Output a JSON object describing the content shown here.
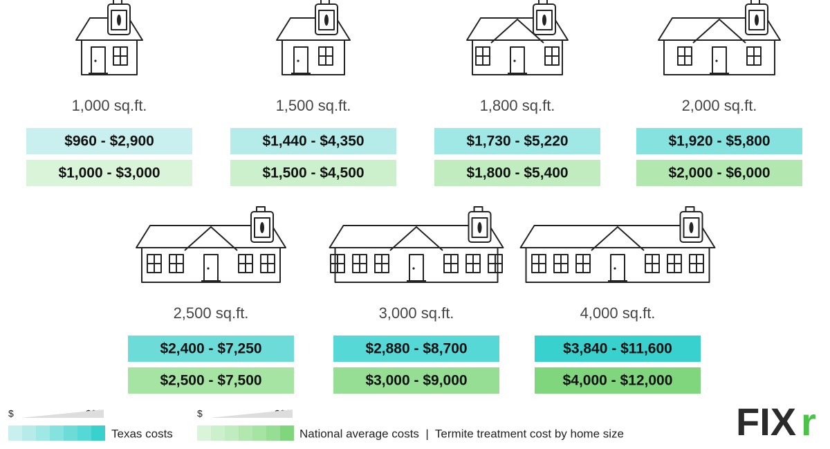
{
  "homes": [
    {
      "size": "1,000 sq.ft.",
      "texas": "$960 - $2,900",
      "national": "$1,000 - $3,000"
    },
    {
      "size": "1,500 sq.ft.",
      "texas": "$1,440 - $4,350",
      "national": "$1,500 - $4,500"
    },
    {
      "size": "1,800 sq.ft.",
      "texas": "$1,730 - $5,220",
      "national": "$1,800 - $5,400"
    },
    {
      "size": "2,000 sq.ft.",
      "texas": "$1,920 - $5,800",
      "national": "$2,000 - $6,000"
    },
    {
      "size": "2,500 sq.ft.",
      "texas": "$2,400 - $7,250",
      "national": "$2,500 - $7,500"
    },
    {
      "size": "3,000 sq.ft.",
      "texas": "$2,880 - $8,700",
      "national": "$3,000 - $9,000"
    },
    {
      "size": "4,000 sq.ft.",
      "texas": "$3,840 - $11,600",
      "national": "$4,000 - $12,000"
    }
  ],
  "legend": {
    "low": "$",
    "high": "$$$",
    "texas": "Texas costs",
    "national": "National average costs  |  Termite treatment cost by home size"
  },
  "logo": {
    "main": "FIX",
    "accent": "r"
  }
}
